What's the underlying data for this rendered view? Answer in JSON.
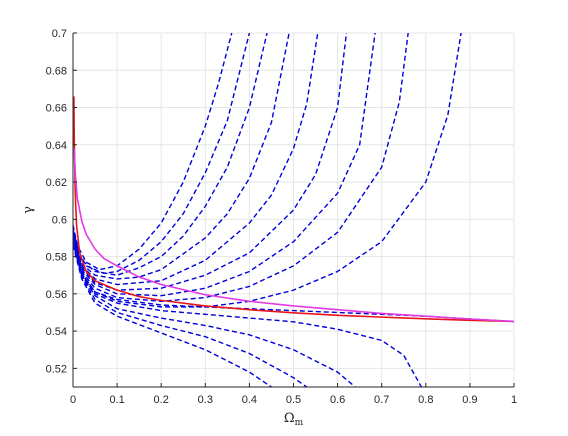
{
  "chart_data": {
    "type": "line",
    "xlabel": "Ω",
    "xlabel_subscript": "m",
    "ylabel": "γ",
    "xlim": [
      0,
      1
    ],
    "ylim": [
      0.51,
      0.7
    ],
    "grid": true,
    "x_ticks": [
      "0",
      "0.1",
      "0.2",
      "0.3",
      "0.4",
      "0.5",
      "0.6",
      "0.7",
      "0.8",
      "0.9",
      "1"
    ],
    "y_ticks": [
      "0.52",
      "0.54",
      "0.56",
      "0.58",
      "0.6",
      "0.62",
      "0.64",
      "0.66",
      "0.68",
      "0.7"
    ],
    "colors": {
      "dashed": "#0000dd",
      "red": "#e8141c",
      "magenta": "#e23be3"
    },
    "series": [
      {
        "style": "solid",
        "color": "red",
        "points": [
          [
            0.002,
            0.666
          ],
          [
            0.003,
            0.64
          ],
          [
            0.005,
            0.615
          ],
          [
            0.008,
            0.597
          ],
          [
            0.015,
            0.582
          ],
          [
            0.03,
            0.572
          ],
          [
            0.05,
            0.567
          ],
          [
            0.1,
            0.562
          ],
          [
            0.15,
            0.5585
          ],
          [
            0.2,
            0.5565
          ],
          [
            0.3,
            0.5535
          ],
          [
            0.4,
            0.5515
          ],
          [
            0.5,
            0.5498
          ],
          [
            0.6,
            0.5485
          ],
          [
            0.7,
            0.5475
          ],
          [
            0.8,
            0.5466
          ],
          [
            0.9,
            0.5458
          ],
          [
            1.0,
            0.5452
          ]
        ]
      },
      {
        "style": "solid",
        "color": "magenta",
        "points": [
          [
            0.003,
            0.638
          ],
          [
            0.005,
            0.625
          ],
          [
            0.01,
            0.611
          ],
          [
            0.02,
            0.599
          ],
          [
            0.03,
            0.592
          ],
          [
            0.05,
            0.584
          ],
          [
            0.07,
            0.579
          ],
          [
            0.1,
            0.575
          ],
          [
            0.15,
            0.569
          ],
          [
            0.2,
            0.565
          ],
          [
            0.3,
            0.5595
          ],
          [
            0.4,
            0.556
          ],
          [
            0.5,
            0.5535
          ],
          [
            0.6,
            0.5515
          ],
          [
            0.7,
            0.5495
          ],
          [
            0.8,
            0.548
          ],
          [
            0.9,
            0.5465
          ],
          [
            1.0,
            0.5452
          ]
        ]
      },
      {
        "style": "dashed",
        "color": "dashed",
        "points": [
          [
            0.0,
            0.597
          ],
          [
            0.01,
            0.586
          ],
          [
            0.03,
            0.577
          ],
          [
            0.06,
            0.573
          ],
          [
            0.1,
            0.575
          ],
          [
            0.15,
            0.584
          ],
          [
            0.2,
            0.598
          ],
          [
            0.25,
            0.62
          ],
          [
            0.3,
            0.65
          ],
          [
            0.33,
            0.673
          ],
          [
            0.36,
            0.7
          ]
        ]
      },
      {
        "style": "dashed",
        "color": "dashed",
        "points": [
          [
            0.0,
            0.595
          ],
          [
            0.01,
            0.584
          ],
          [
            0.03,
            0.575
          ],
          [
            0.07,
            0.571
          ],
          [
            0.1,
            0.572
          ],
          [
            0.15,
            0.578
          ],
          [
            0.2,
            0.588
          ],
          [
            0.25,
            0.603
          ],
          [
            0.3,
            0.625
          ],
          [
            0.35,
            0.653
          ],
          [
            0.4,
            0.7
          ]
        ]
      },
      {
        "style": "dashed",
        "color": "dashed",
        "points": [
          [
            0.0,
            0.594
          ],
          [
            0.02,
            0.578
          ],
          [
            0.05,
            0.572
          ],
          [
            0.1,
            0.57
          ],
          [
            0.15,
            0.574
          ],
          [
            0.2,
            0.58
          ],
          [
            0.25,
            0.591
          ],
          [
            0.3,
            0.607
          ],
          [
            0.35,
            0.628
          ],
          [
            0.4,
            0.66
          ],
          [
            0.44,
            0.7
          ]
        ]
      },
      {
        "style": "dashed",
        "color": "dashed",
        "points": [
          [
            0.0,
            0.593
          ],
          [
            0.02,
            0.576
          ],
          [
            0.05,
            0.57
          ],
          [
            0.1,
            0.568
          ],
          [
            0.15,
            0.569
          ],
          [
            0.2,
            0.573
          ],
          [
            0.3,
            0.59
          ],
          [
            0.35,
            0.603
          ],
          [
            0.4,
            0.622
          ],
          [
            0.45,
            0.652
          ],
          [
            0.49,
            0.7
          ]
        ]
      },
      {
        "style": "dashed",
        "color": "dashed",
        "points": [
          [
            0.0,
            0.592
          ],
          [
            0.02,
            0.575
          ],
          [
            0.05,
            0.568
          ],
          [
            0.1,
            0.565
          ],
          [
            0.2,
            0.567
          ],
          [
            0.3,
            0.578
          ],
          [
            0.4,
            0.598
          ],
          [
            0.45,
            0.613
          ],
          [
            0.5,
            0.638
          ],
          [
            0.53,
            0.662
          ],
          [
            0.555,
            0.7
          ]
        ]
      },
      {
        "style": "dashed",
        "color": "dashed",
        "points": [
          [
            0.0,
            0.591
          ],
          [
            0.02,
            0.574
          ],
          [
            0.05,
            0.566
          ],
          [
            0.1,
            0.562
          ],
          [
            0.2,
            0.563
          ],
          [
            0.3,
            0.57
          ],
          [
            0.4,
            0.582
          ],
          [
            0.5,
            0.605
          ],
          [
            0.55,
            0.624
          ],
          [
            0.6,
            0.66
          ],
          [
            0.62,
            0.7
          ]
        ]
      },
      {
        "style": "dashed",
        "color": "dashed",
        "points": [
          [
            0.0,
            0.59
          ],
          [
            0.02,
            0.573
          ],
          [
            0.05,
            0.565
          ],
          [
            0.1,
            0.56
          ],
          [
            0.2,
            0.559
          ],
          [
            0.3,
            0.563
          ],
          [
            0.4,
            0.572
          ],
          [
            0.5,
            0.588
          ],
          [
            0.6,
            0.614
          ],
          [
            0.65,
            0.64
          ],
          [
            0.685,
            0.7
          ]
        ]
      },
      {
        "style": "dashed",
        "color": "dashed",
        "points": [
          [
            0.0,
            0.589
          ],
          [
            0.02,
            0.572
          ],
          [
            0.05,
            0.563
          ],
          [
            0.1,
            0.558
          ],
          [
            0.2,
            0.556
          ],
          [
            0.3,
            0.558
          ],
          [
            0.4,
            0.564
          ],
          [
            0.5,
            0.575
          ],
          [
            0.6,
            0.593
          ],
          [
            0.7,
            0.628
          ],
          [
            0.74,
            0.663
          ],
          [
            0.76,
            0.7
          ]
        ]
      },
      {
        "style": "dashed",
        "color": "dashed",
        "points": [
          [
            0.0,
            0.588
          ],
          [
            0.02,
            0.571
          ],
          [
            0.05,
            0.561
          ],
          [
            0.1,
            0.556
          ],
          [
            0.2,
            0.553
          ],
          [
            0.3,
            0.553
          ],
          [
            0.4,
            0.556
          ],
          [
            0.5,
            0.562
          ],
          [
            0.6,
            0.572
          ],
          [
            0.7,
            0.588
          ],
          [
            0.8,
            0.62
          ],
          [
            0.85,
            0.656
          ],
          [
            0.88,
            0.7
          ]
        ]
      },
      {
        "style": "dashed",
        "color": "dashed",
        "points": [
          [
            0.0,
            0.587
          ],
          [
            0.02,
            0.57
          ],
          [
            0.05,
            0.559
          ],
          [
            0.1,
            0.552
          ],
          [
            0.2,
            0.547
          ],
          [
            0.3,
            0.543
          ],
          [
            0.4,
            0.538
          ],
          [
            0.5,
            0.53
          ],
          [
            0.6,
            0.518
          ],
          [
            0.64,
            0.51
          ]
        ]
      },
      {
        "style": "dashed",
        "color": "dashed",
        "points": [
          [
            0.0,
            0.587
          ],
          [
            0.02,
            0.569
          ],
          [
            0.05,
            0.557
          ],
          [
            0.1,
            0.55
          ],
          [
            0.2,
            0.543
          ],
          [
            0.3,
            0.537
          ],
          [
            0.4,
            0.528
          ],
          [
            0.5,
            0.515
          ],
          [
            0.53,
            0.51
          ]
        ]
      },
      {
        "style": "dashed",
        "color": "dashed",
        "points": [
          [
            0.0,
            0.586
          ],
          [
            0.02,
            0.568
          ],
          [
            0.05,
            0.555
          ],
          [
            0.1,
            0.548
          ],
          [
            0.2,
            0.539
          ],
          [
            0.3,
            0.53
          ],
          [
            0.4,
            0.518
          ],
          [
            0.45,
            0.51
          ]
        ]
      },
      {
        "style": "dashed",
        "color": "dashed",
        "points": [
          [
            0.0,
            0.588
          ],
          [
            0.02,
            0.57
          ],
          [
            0.05,
            0.56
          ],
          [
            0.1,
            0.555
          ],
          [
            0.2,
            0.551
          ],
          [
            0.3,
            0.549
          ],
          [
            0.4,
            0.547
          ],
          [
            0.5,
            0.545
          ],
          [
            0.6,
            0.541
          ],
          [
            0.7,
            0.535
          ],
          [
            0.75,
            0.527
          ],
          [
            0.79,
            0.51
          ]
        ]
      },
      {
        "style": "dashed",
        "color": "dashed",
        "points": [
          [
            0.0,
            0.589
          ],
          [
            0.02,
            0.571
          ],
          [
            0.05,
            0.561
          ],
          [
            0.1,
            0.557
          ],
          [
            0.2,
            0.554
          ],
          [
            0.3,
            0.553
          ],
          [
            0.4,
            0.552
          ],
          [
            0.5,
            0.551
          ],
          [
            0.6,
            0.55
          ],
          [
            0.7,
            0.549
          ],
          [
            0.8,
            0.548
          ],
          [
            0.9,
            0.5465
          ],
          [
            1.0,
            0.5452
          ]
        ]
      }
    ]
  }
}
